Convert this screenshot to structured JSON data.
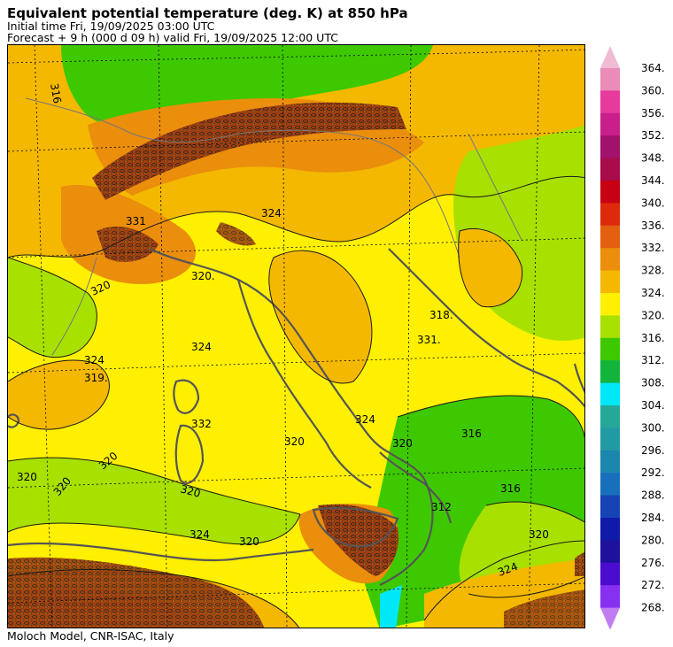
{
  "header": {
    "title": "Equivalent potential temperature (deg. K) at 850 hPa",
    "initial_time": "Initial time  Fri, 19/09/2025  03:00 UTC",
    "forecast": "Forecast  +   9 h  (000 d 09 h)  valid Fri, 19/09/2025 12:00 UTC"
  },
  "footer": {
    "credit": "Moloch Model, CNR-ISAC, Italy"
  },
  "colorbar": {
    "levels": [
      364,
      360,
      356,
      352,
      348,
      344,
      340,
      336,
      332,
      328,
      324,
      320,
      316,
      312,
      308,
      304,
      300,
      296,
      292,
      288,
      284,
      280,
      276,
      272,
      268
    ],
    "labels": [
      "364.",
      "360.",
      "356.",
      "352.",
      "348.",
      "344.",
      "340.",
      "336.",
      "332.",
      "328.",
      "324.",
      "320.",
      "316.",
      "312.",
      "308.",
      "304.",
      "300.",
      "296.",
      "292.",
      "288.",
      "284.",
      "280.",
      "276.",
      "272.",
      "268."
    ],
    "bin_colors": [
      "#e98cb8",
      "#e8399c",
      "#c81f8c",
      "#a0126c",
      "#a80c4a",
      "#c80014",
      "#dc2a0a",
      "#e26010",
      "#ea8e0c",
      "#f4b800",
      "#fef000",
      "#a8e000",
      "#3ec800",
      "#12b43c",
      "#00e8f8",
      "#26a898",
      "#229aa4",
      "#1c86ac",
      "#1870bc",
      "#1644b4",
      "#101aa8",
      "#1e129c",
      "#4c0cd0",
      "#8830f0"
    ],
    "top_arrow_color": "#f0bcd4",
    "bottom_arrow_color": "#c07cf0"
  },
  "map": {
    "contour_labels": [
      {
        "text": "316"
      },
      {
        "text": "331"
      },
      {
        "text": "324"
      },
      {
        "text": "320"
      },
      {
        "text": "320."
      },
      {
        "text": "324"
      },
      {
        "text": "319."
      },
      {
        "text": "324"
      },
      {
        "text": "332"
      },
      {
        "text": "320"
      },
      {
        "text": "320"
      },
      {
        "text": "320"
      },
      {
        "text": "320"
      },
      {
        "text": "320"
      },
      {
        "text": "324"
      },
      {
        "text": "320"
      },
      {
        "text": "318."
      },
      {
        "text": "331."
      },
      {
        "text": "320"
      },
      {
        "text": "316"
      },
      {
        "text": "316"
      },
      {
        "text": "312"
      },
      {
        "text": "320"
      },
      {
        "text": "324"
      },
      {
        "text": "324"
      }
    ]
  }
}
